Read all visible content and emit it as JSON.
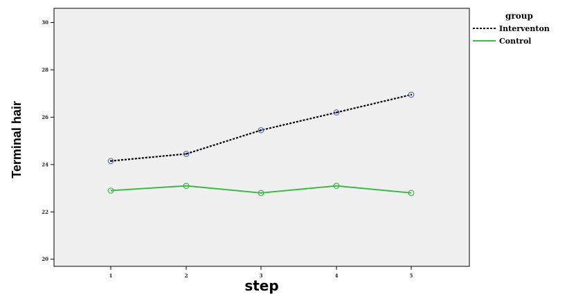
{
  "chart_data": {
    "type": "line",
    "xlabel": "step",
    "ylabel": "Terminal hair",
    "x": [
      1,
      2,
      3,
      4,
      5
    ],
    "x_tick_labels": [
      "1",
      "2",
      "3",
      "4",
      "5"
    ],
    "ylim": [
      19.7,
      30.6
    ],
    "y_ticks": [
      20,
      22,
      24,
      26,
      28,
      30
    ],
    "y_tick_labels": [
      "20",
      "22",
      "24",
      "26",
      "28",
      "30"
    ],
    "grid": false,
    "legend": {
      "title": "group",
      "position": "top-right-outside"
    },
    "series": [
      {
        "name": "Interventon",
        "values": [
          24.15,
          24.45,
          25.45,
          26.2,
          26.95
        ],
        "color": "#000000",
        "marker_color": "#5a6fb8",
        "line_style": "dotted"
      },
      {
        "name": "Control",
        "values": [
          22.9,
          23.1,
          22.8,
          23.1,
          22.8
        ],
        "color": "#3cb944",
        "marker_color": "#3cb944",
        "line_style": "solid"
      }
    ]
  }
}
